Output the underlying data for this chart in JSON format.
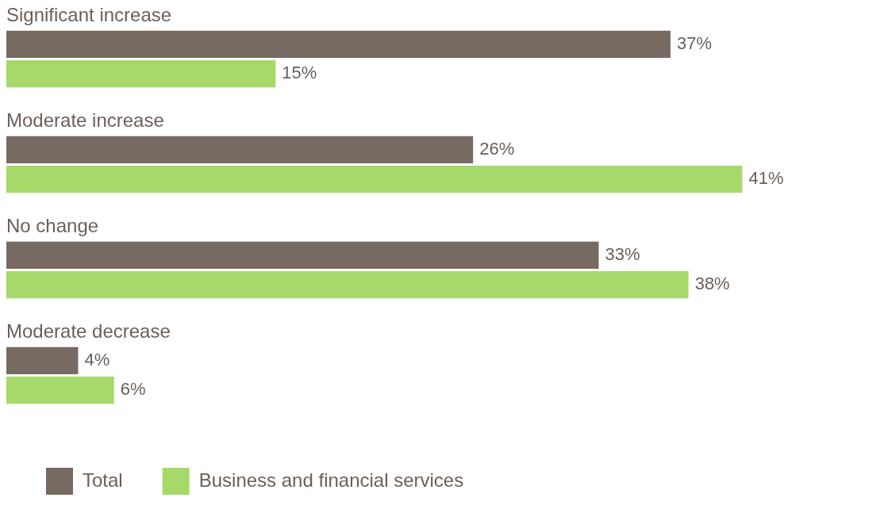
{
  "chart_data": {
    "type": "bar",
    "orientation": "horizontal",
    "categories": [
      "Significant increase",
      "Moderate increase",
      "No change",
      "Moderate decrease"
    ],
    "series": [
      {
        "name": "Total",
        "color": "#766a62",
        "values": [
          37,
          26,
          33,
          4
        ],
        "value_labels": [
          "37%",
          "26%",
          "33%",
          "4%"
        ]
      },
      {
        "name": "Business and financial services",
        "color": "#a6d96a",
        "values": [
          15,
          41,
          38,
          6
        ],
        "value_labels": [
          "15%",
          "41%",
          "38%",
          "6%"
        ]
      }
    ],
    "legend": "bottom left"
  }
}
